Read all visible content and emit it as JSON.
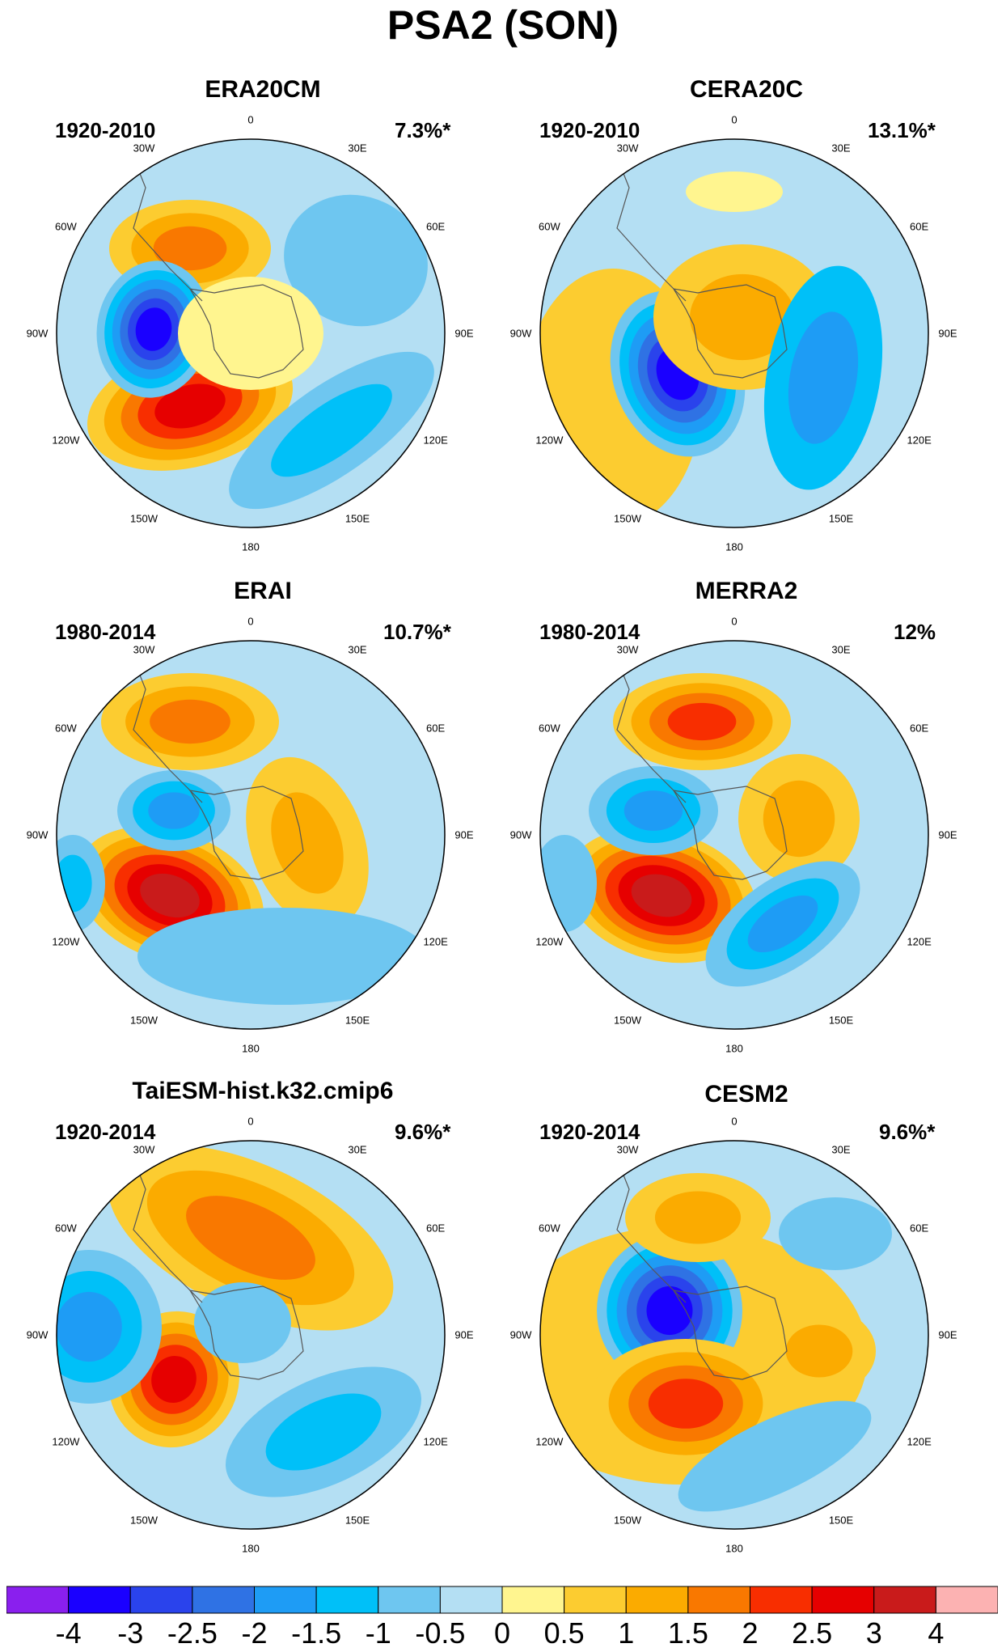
{
  "title": "PSA2 (SON)",
  "panels": [
    {
      "title": "ERA20CM",
      "period": "1920-2010",
      "variance": "7.3%*"
    },
    {
      "title": "CERA20C",
      "period": "1920-2010",
      "variance": "13.1%*"
    },
    {
      "title": "ERAI",
      "period": "1980-2014",
      "variance": "10.7%*"
    },
    {
      "title": "MERRA2",
      "period": "1980-2014",
      "variance": "12%"
    },
    {
      "title": "TaiESM-hist.k32.cmip6",
      "period": "1920-2014",
      "variance": "9.6%*"
    },
    {
      "title": "CESM2",
      "period": "1920-2014",
      "variance": "9.6%*"
    }
  ],
  "longitude_labels": [
    "0",
    "30E",
    "60E",
    "90E",
    "120E",
    "150E",
    "180",
    "150W",
    "120W",
    "90W",
    "60W",
    "30W"
  ],
  "colorbar": {
    "labels": [
      "-4",
      "-3",
      "-2.5",
      "-2",
      "-1.5",
      "-1",
      "-0.5",
      "0",
      "0.5",
      "1",
      "1.5",
      "2",
      "2.5",
      "3",
      "4"
    ],
    "colors": [
      "#8a1fee",
      "#1a00ff",
      "#2a43ec",
      "#2f72e4",
      "#1e9cf5",
      "#00c0f8",
      "#6ec6f0",
      "#b4dff3",
      "#fff58f",
      "#fccc30",
      "#fbab00",
      "#f97800",
      "#f82e00",
      "#e60000",
      "#c91b1b",
      "#fcb2b2"
    ]
  }
}
